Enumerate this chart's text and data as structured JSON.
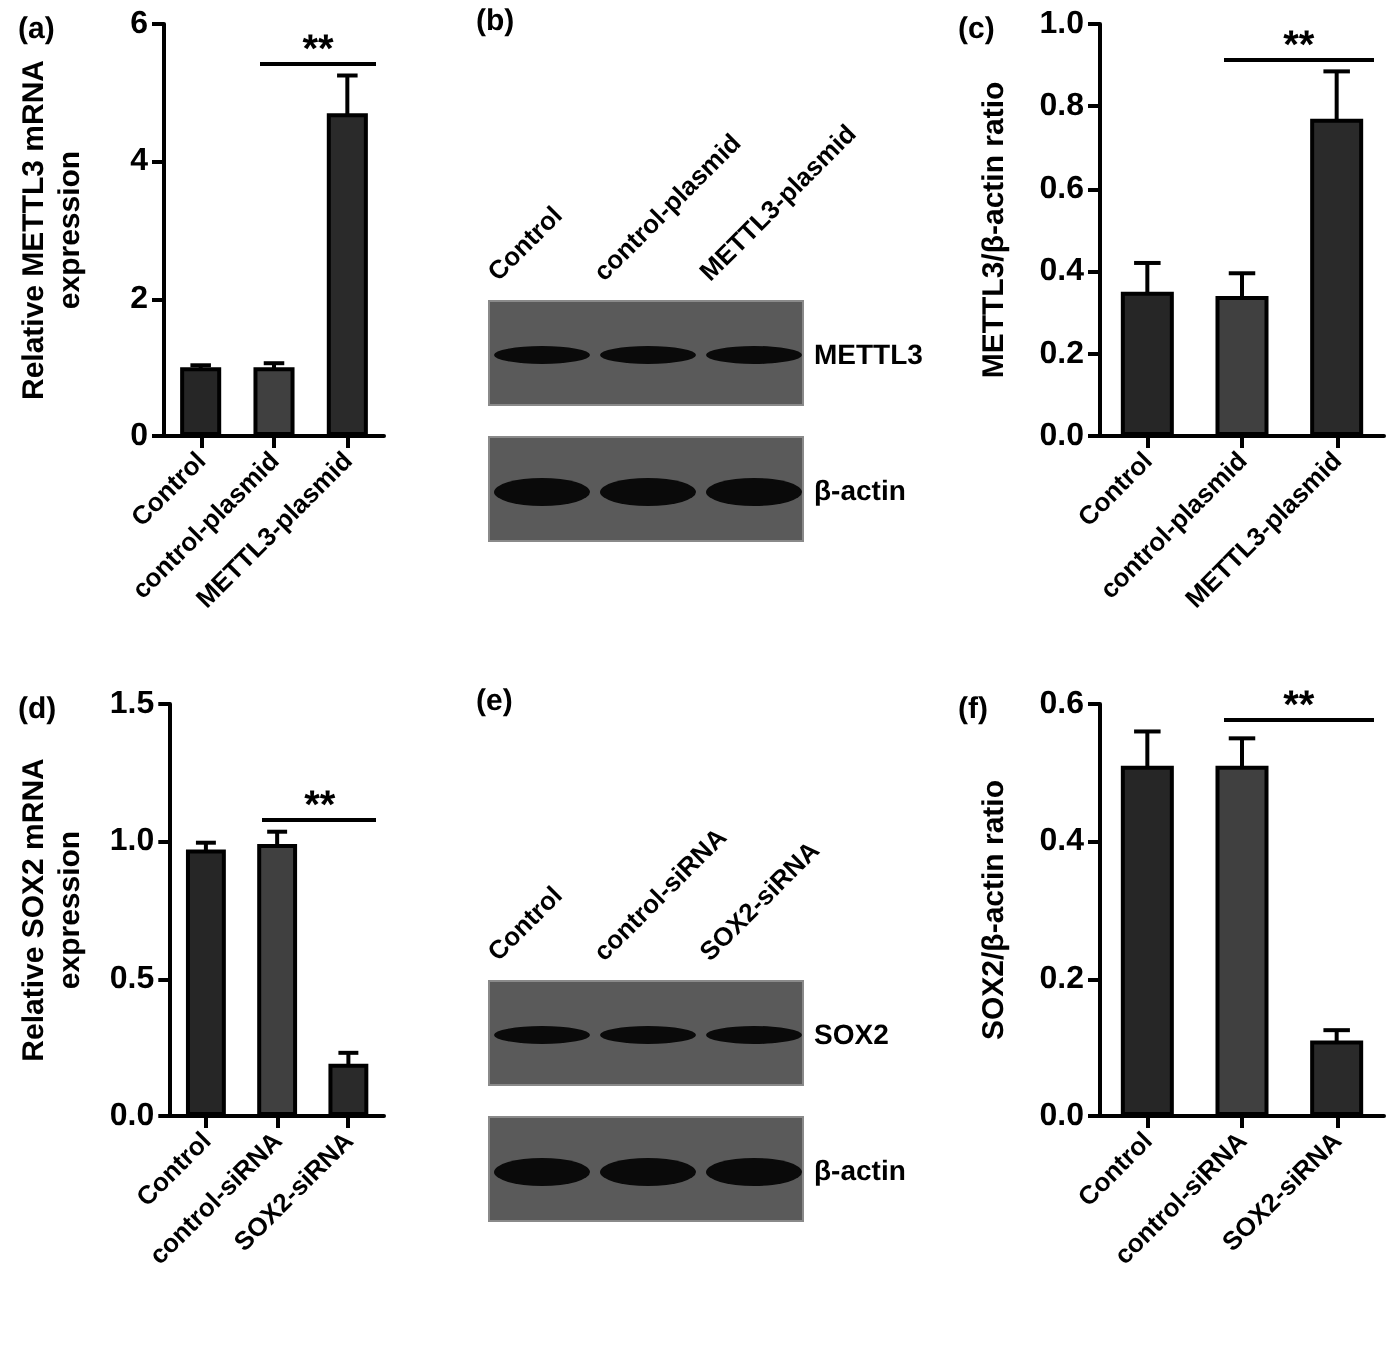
{
  "chart_data": [
    {
      "type": "bar",
      "title": "(a)",
      "ylabel": "Relative METTL3 mRNA expression",
      "categories": [
        "Control",
        "control-plasmid",
        "METTL3-plasmid"
      ],
      "values": [
        1.0,
        1.0,
        4.7
      ],
      "errors": [
        0.03,
        0.06,
        0.55
      ],
      "colors": [
        "#262626",
        "#404040",
        "#2a2a2a"
      ],
      "ylim": [
        0,
        6
      ],
      "yticks": [
        0,
        2,
        4,
        6
      ],
      "annotations": [
        "**"
      ]
    },
    {
      "type": "other",
      "title": "(b)",
      "categories": [
        "Control",
        "control-plasmid",
        "METTL3-plasmid"
      ],
      "annotations": [
        "METTL3",
        "β-actin"
      ]
    },
    {
      "type": "bar",
      "title": "(c)",
      "ylabel": "METTL3/β-actin ratio",
      "categories": [
        "Control",
        "control-plasmid",
        "METTL3-plasmid"
      ],
      "values": [
        0.35,
        0.34,
        0.77
      ],
      "errors": [
        0.07,
        0.055,
        0.115
      ],
      "colors": [
        "#262626",
        "#404040",
        "#2a2a2a"
      ],
      "ylim": [
        0,
        1
      ],
      "yticks": [
        {
          "value": 0,
          "label": "0.0"
        },
        {
          "value": 0.2,
          "label": "0.2"
        },
        {
          "value": 0.4,
          "label": "0.4"
        },
        {
          "value": 0.6,
          "label": "0.6"
        },
        {
          "value": 0.8,
          "label": "0.8"
        },
        {
          "value": 1,
          "label": "1.0"
        }
      ],
      "annotations": [
        "**"
      ]
    },
    {
      "type": "bar",
      "title": "(d)",
      "ylabel": "Relative SOX2 mRNA expression",
      "categories": [
        "Control",
        "control-siRNA",
        "SOX2-siRNA"
      ],
      "values": [
        0.97,
        0.99,
        0.19
      ],
      "errors": [
        0.025,
        0.045,
        0.04
      ],
      "colors": [
        "#262626",
        "#404040",
        "#2a2a2a"
      ],
      "ylim": [
        0,
        1.5
      ],
      "yticks": [
        {
          "value": 0,
          "label": "0.0"
        },
        {
          "value": 0.5,
          "label": "0.5"
        },
        {
          "value": 1,
          "label": "1.0"
        },
        {
          "value": 1.5,
          "label": "1.5"
        }
      ],
      "annotations": [
        "**"
      ]
    },
    {
      "type": "other",
      "title": "(e)",
      "categories": [
        "Control",
        "control-siRNA",
        "SOX2-siRNA"
      ],
      "annotations": [
        "SOX2",
        "β-actin"
      ]
    },
    {
      "type": "bar",
      "title": "(f)",
      "ylabel": "SOX2/β-actin ratio",
      "categories": [
        "Control",
        "control-siRNA",
        "SOX2-siRNA"
      ],
      "values": [
        0.51,
        0.51,
        0.11
      ],
      "errors": [
        0.05,
        0.04,
        0.015
      ],
      "colors": [
        "#262626",
        "#404040",
        "#2a2a2a"
      ],
      "ylim": [
        0,
        0.6
      ],
      "yticks": [
        {
          "value": 0,
          "label": "0.0"
        },
        {
          "value": 0.2,
          "label": "0.2"
        },
        {
          "value": 0.4,
          "label": "0.4"
        },
        {
          "value": 0.6,
          "label": "0.6"
        }
      ],
      "annotations": [
        "**"
      ]
    }
  ]
}
